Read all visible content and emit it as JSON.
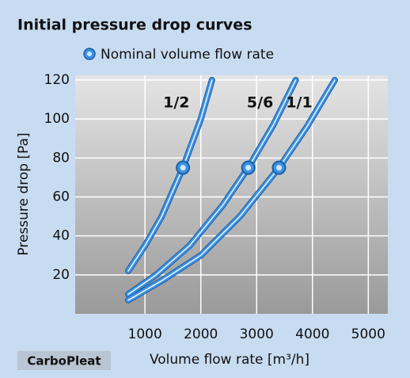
{
  "chart_data": {
    "type": "line",
    "title": "Initial pressure drop curves",
    "xlabel": "Volume flow rate [m³/h]",
    "ylabel": "Pressure drop [Pa]",
    "brand": "CarboPleat",
    "xlim": [
      -250,
      5350
    ],
    "ylim": [
      0,
      120
    ],
    "xticks": [
      1000,
      2000,
      3000,
      4000,
      5000
    ],
    "yticks": [
      20,
      40,
      60,
      80,
      100,
      120
    ],
    "grid": true,
    "color": "#3d92e3",
    "series": [
      {
        "name": "1/2",
        "x": [
          700,
          1000,
          1300,
          1680,
          2000,
          2200
        ],
        "values": [
          22,
          35,
          50,
          75,
          100,
          120
        ]
      },
      {
        "name": "5/6",
        "x": [
          700,
          1200,
          1800,
          2400,
          2850,
          3300,
          3700
        ],
        "values": [
          10,
          20,
          35,
          56,
          75,
          97,
          120
        ]
      },
      {
        "name": "1/1",
        "x": [
          700,
          1300,
          2000,
          2700,
          3400,
          3900,
          4400
        ],
        "values": [
          7,
          17,
          30,
          50,
          75,
          96,
          120
        ]
      }
    ],
    "nominal": {
      "name": "Nominal volume flow rate",
      "x": [
        1680,
        2850,
        3400
      ],
      "values": [
        75,
        75,
        75
      ]
    }
  }
}
